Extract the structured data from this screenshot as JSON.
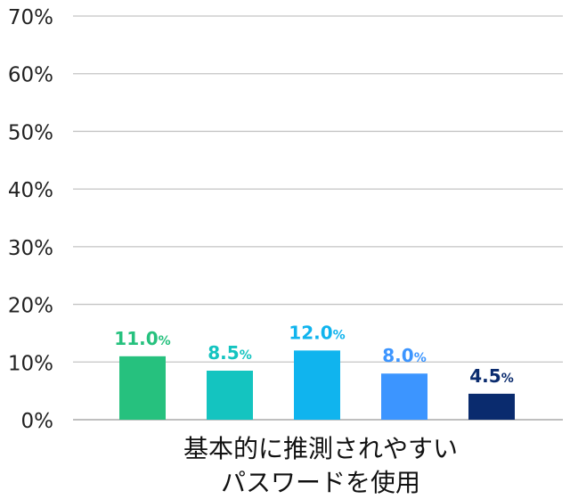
{
  "chart_data": {
    "type": "bar",
    "category_label": [
      "基本的に推測されやすい",
      "パスワードを使用"
    ],
    "series": [
      {
        "values": [
          11.0
        ],
        "color": "#26c17e"
      },
      {
        "values": [
          8.5
        ],
        "color": "#14c4c0"
      },
      {
        "values": [
          12.0
        ],
        "color": "#10b4ee"
      },
      {
        "values": [
          8.0
        ],
        "color": "#3c95ff"
      },
      {
        "values": [
          4.5
        ],
        "color": "#0a2b6e"
      }
    ],
    "data_labels": [
      {
        "number": "11.0",
        "unit": "%"
      },
      {
        "number": "8.5",
        "unit": "%"
      },
      {
        "number": "12.0",
        "unit": "%"
      },
      {
        "number": "8.0",
        "unit": "%"
      },
      {
        "number": "4.5",
        "unit": "%"
      }
    ],
    "y_ticks": [
      "0%",
      "10%",
      "20%",
      "30%",
      "40%",
      "50%",
      "60%",
      "70%"
    ],
    "ylim": [
      0,
      70
    ],
    "grid": true,
    "legend": "none"
  }
}
